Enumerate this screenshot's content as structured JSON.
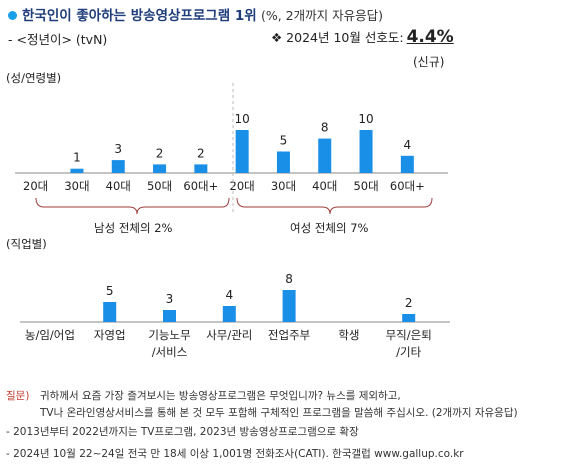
{
  "header": {
    "title": "한국인이 좋아하는 방송영상프로그램 1위",
    "title_unit": "(%, 2개까지 자유응답)",
    "program": "- <정년이> (tvN)",
    "rating_label": "❖ 2024년 10월 선호도:",
    "rating_value": "4.4%",
    "new_tag": "(신규)"
  },
  "sections": {
    "gender_age": "(성/연령별)",
    "occupation": "(직업별)"
  },
  "group_labels": {
    "male": "남성 전체의 2%",
    "female": "여성 전체의 7%"
  },
  "colors": {
    "bar": "#1a8fe8",
    "accent_dot": "#1aa0e8",
    "title": "#1f3d7a",
    "question": "#c0392b"
  },
  "chart_data": [
    {
      "type": "bar",
      "categories": [
        "20대",
        "30대",
        "40대",
        "50대",
        "60대+",
        "20대",
        "30대",
        "40대",
        "50대",
        "60대+"
      ],
      "values": [
        null,
        1,
        3,
        2,
        2,
        10,
        5,
        8,
        10,
        4
      ],
      "value_labels": [
        "",
        "1",
        "3",
        "2",
        "2",
        "10",
        "5",
        "8",
        "10",
        "4"
      ],
      "groups": [
        "남성",
        "남성",
        "남성",
        "남성",
        "남성",
        "여성",
        "여성",
        "여성",
        "여성",
        "여성"
      ]
    },
    {
      "type": "bar",
      "categories": [
        "농/임/어업",
        "자영업",
        "기능노무\n/서비스",
        "사무/관리",
        "전업주부",
        "학생",
        "무직/은퇴\n/기타"
      ],
      "values": [
        null,
        5,
        3,
        4,
        8,
        null,
        2
      ],
      "value_labels": [
        "",
        "5",
        "3",
        "4",
        "8",
        "",
        "2"
      ]
    }
  ],
  "footer": {
    "q_label": "질문)",
    "q_line1": "귀하께서 요즘 가장 즐겨보시는 방송영상프로그램은 무엇입니까? 뉴스를 제외하고,",
    "q_line2": "TV나 온라인영상서비스를 통해 본 것 모두 포함해 구체적인 프로그램을 말씀해 주십시오. (2개까지 자유응답)",
    "note1": "- 2013년부터 2022년까지는 TV프로그램, 2023년 방송영상프로그램으로 확장",
    "note2": "- 2024년 10월 22~24일 전국 만 18세 이상 1,001명 전화조사(CATI). 한국갤럽 www.gallup.co.kr"
  }
}
